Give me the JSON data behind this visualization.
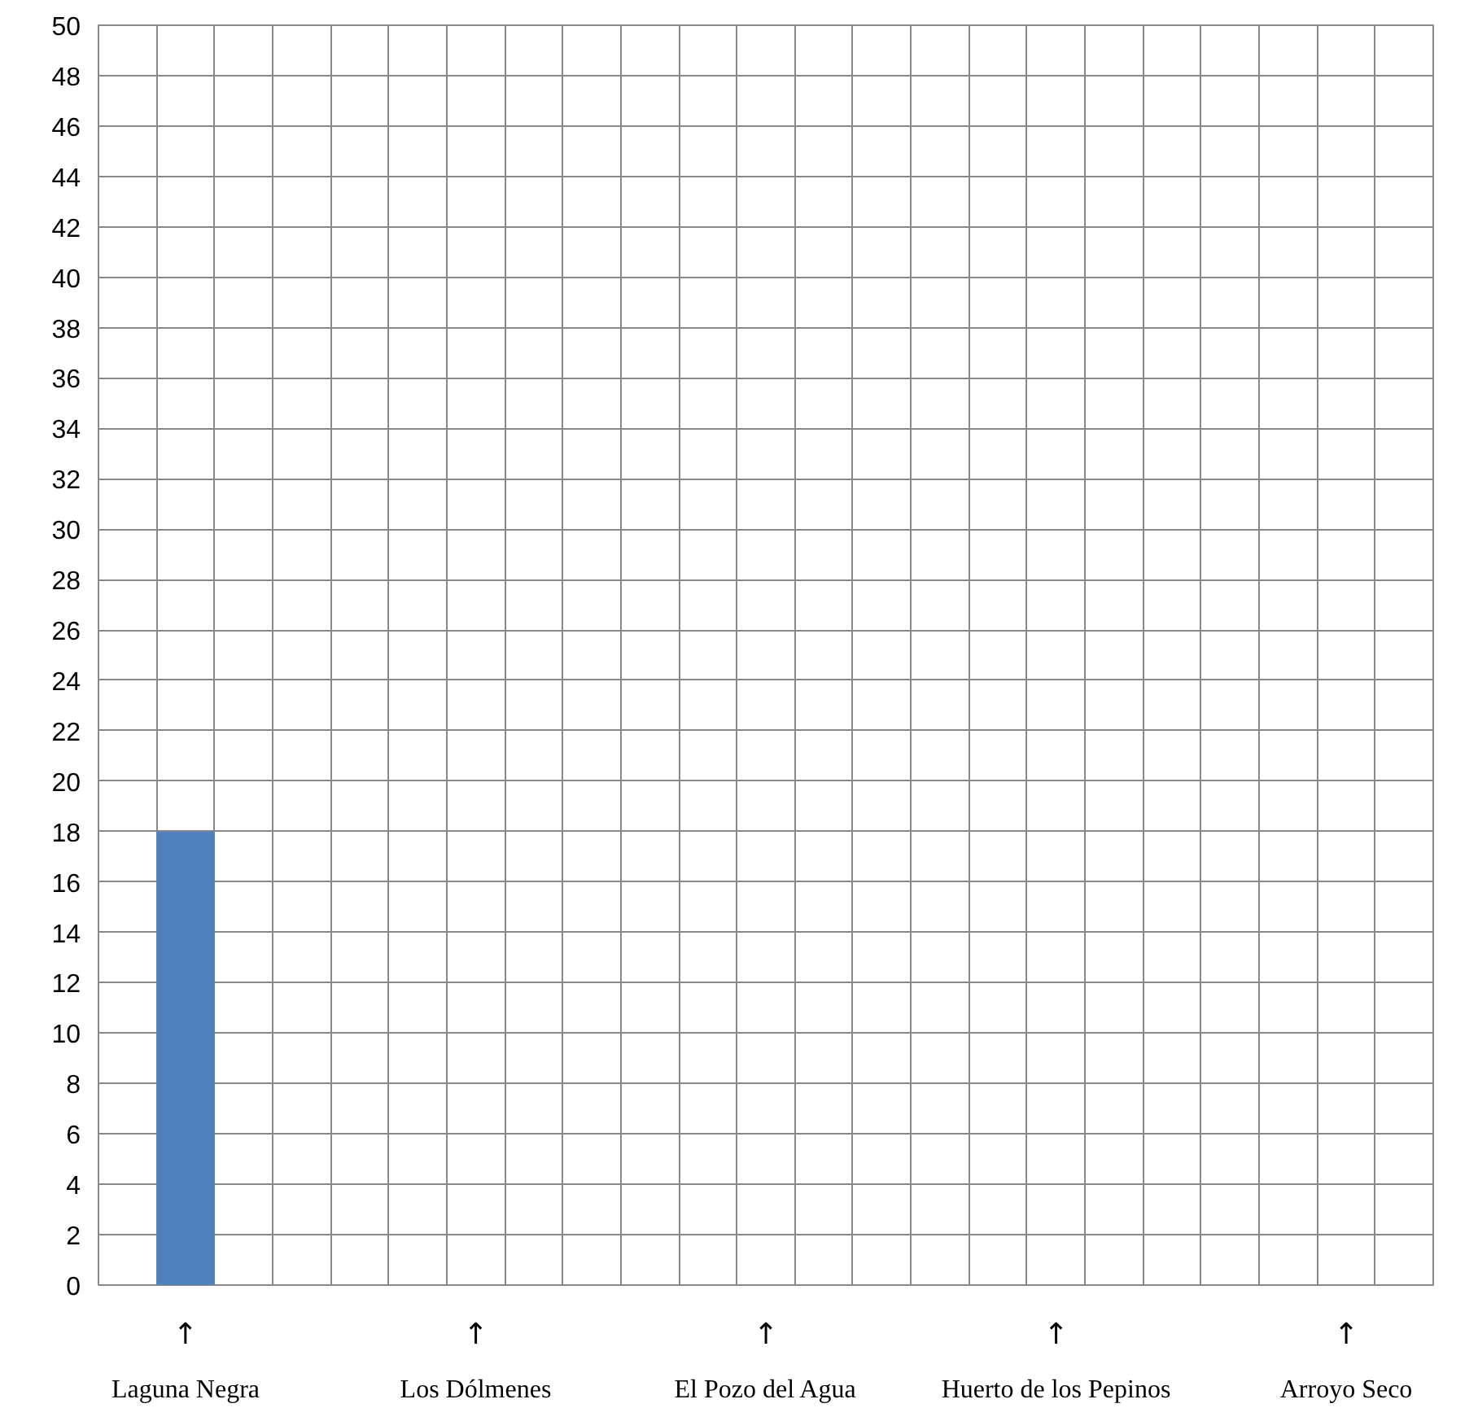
{
  "chart_data": {
    "type": "bar",
    "categories": [
      "Laguna Negra",
      "Los Dólmenes",
      "El Pozo del Agua",
      "Huerto de los Pepinos",
      "Arroyo Seco"
    ],
    "values": [
      18,
      null,
      null,
      null,
      null
    ],
    "color": "#4f81bd",
    "ylim": [
      0,
      50
    ],
    "yticks": [
      0,
      2,
      4,
      6,
      8,
      10,
      12,
      14,
      16,
      18,
      20,
      22,
      24,
      26,
      28,
      30,
      32,
      34,
      36,
      38,
      40,
      42,
      44,
      46,
      48,
      50
    ],
    "grid": true,
    "annotations": [
      "↑",
      "↑",
      "↑",
      "↑",
      "↑"
    ]
  }
}
